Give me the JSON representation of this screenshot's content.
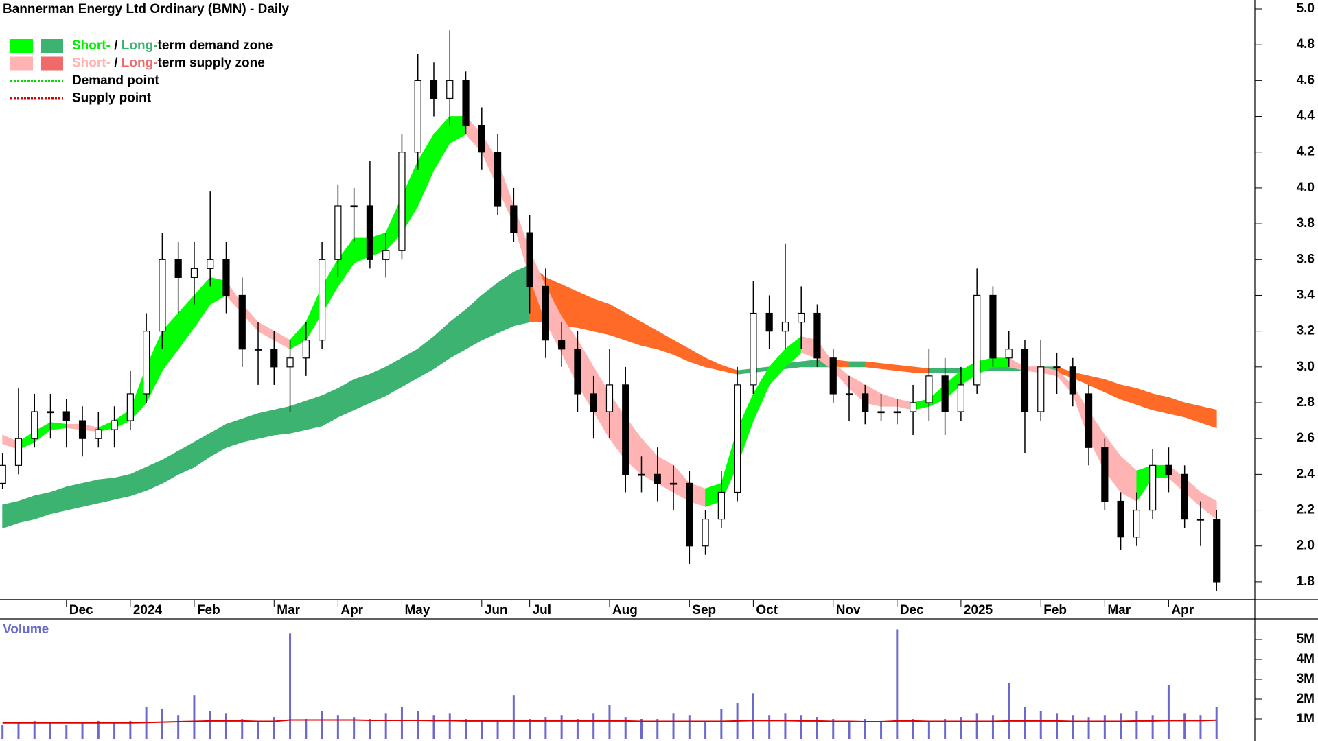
{
  "chart_data": [
    {
      "type": "candlestick",
      "title": "Bannerman Energy Ltd Ordinary (BMN) - Daily",
      "categories": [
        null,
        null,
        null,
        null,
        "Dec",
        null,
        null,
        null,
        "2024",
        null,
        null,
        null,
        "Feb",
        null,
        null,
        null,
        null,
        "Mar",
        null,
        null,
        null,
        "Apr",
        null,
        null,
        null,
        "May",
        null,
        null,
        null,
        null,
        "Jun",
        null,
        null,
        "Jul",
        null,
        null,
        null,
        null,
        "Aug",
        null,
        null,
        null,
        null,
        "Sep",
        null,
        null,
        null,
        "Oct",
        null,
        null,
        null,
        null,
        "Nov",
        null,
        null,
        null,
        "Dec",
        null,
        null,
        null,
        "2025",
        null,
        null,
        null,
        null,
        "Feb",
        null,
        null,
        null,
        "Mar",
        null,
        null,
        null,
        "Apr",
        null,
        null,
        null
      ],
      "open": [
        2.35,
        2.45,
        2.6,
        2.75,
        2.75,
        2.7,
        2.6,
        2.65,
        2.7,
        2.85,
        3.2,
        3.6,
        3.5,
        3.55,
        3.6,
        3.4,
        3.1,
        3.1,
        3.0,
        3.05,
        3.15,
        3.6,
        3.9,
        3.9,
        3.6,
        3.65,
        4.2,
        4.6,
        4.5,
        4.6,
        4.35,
        4.2,
        3.9,
        3.75,
        3.45,
        3.15,
        3.1,
        2.85,
        2.75,
        2.9,
        2.4,
        2.4,
        2.35,
        2.35,
        2.0,
        2.15,
        2.3,
        2.9,
        3.3,
        3.2,
        3.25,
        3.3,
        3.05,
        2.85,
        2.85,
        2.75,
        2.75,
        2.75,
        2.8,
        2.95,
        2.75,
        2.9,
        3.4,
        3.05,
        3.1,
        2.75,
        3.0,
        3.0,
        2.85,
        2.55,
        2.25,
        2.05,
        2.2,
        2.45,
        2.4,
        2.15,
        2.15
      ],
      "high": [
        2.52,
        2.88,
        2.85,
        2.85,
        2.82,
        2.78,
        2.75,
        2.78,
        2.98,
        3.3,
        3.75,
        3.7,
        3.7,
        3.98,
        3.7,
        3.5,
        3.25,
        3.2,
        3.15,
        3.25,
        3.7,
        4.02,
        4.0,
        4.15,
        3.75,
        4.3,
        4.75,
        4.7,
        4.88,
        4.65,
        4.45,
        4.3,
        4.0,
        3.85,
        3.55,
        3.25,
        3.2,
        2.95,
        3.1,
        3.0,
        2.5,
        2.55,
        2.45,
        2.42,
        2.2,
        2.42,
        3.0,
        3.48,
        3.4,
        3.69,
        3.45,
        3.35,
        3.1,
        2.95,
        2.9,
        2.85,
        2.82,
        2.9,
        3.1,
        3.05,
        3.0,
        3.55,
        3.45,
        3.2,
        3.15,
        3.15,
        3.08,
        3.05,
        2.9,
        2.6,
        2.3,
        2.3,
        2.54,
        2.55,
        2.45,
        2.25,
        2.2
      ],
      "low": [
        2.32,
        2.4,
        2.55,
        2.6,
        2.55,
        2.5,
        2.55,
        2.55,
        2.65,
        2.8,
        3.1,
        3.3,
        3.35,
        3.45,
        3.3,
        3.0,
        2.9,
        2.9,
        2.75,
        2.95,
        3.1,
        3.5,
        3.7,
        3.55,
        3.5,
        3.6,
        4.1,
        4.4,
        4.35,
        4.3,
        4.1,
        3.85,
        3.7,
        3.3,
        3.05,
        3.0,
        2.75,
        2.6,
        2.6,
        2.3,
        2.3,
        2.25,
        2.2,
        1.9,
        1.95,
        2.1,
        2.25,
        2.85,
        3.1,
        3.1,
        3.1,
        3.0,
        2.8,
        2.7,
        2.68,
        2.7,
        2.68,
        2.62,
        2.7,
        2.62,
        2.7,
        2.85,
        3.0,
        3.0,
        2.52,
        2.7,
        2.85,
        2.78,
        2.45,
        2.2,
        1.98,
        2.0,
        2.15,
        2.3,
        2.1,
        2.0,
        1.75
      ],
      "close": [
        2.45,
        2.6,
        2.75,
        2.75,
        2.7,
        2.6,
        2.65,
        2.7,
        2.85,
        3.2,
        3.6,
        3.5,
        3.55,
        3.6,
        3.4,
        3.1,
        3.1,
        3.0,
        3.05,
        3.15,
        3.6,
        3.9,
        3.9,
        3.6,
        3.65,
        4.2,
        4.6,
        4.5,
        4.6,
        4.35,
        4.2,
        3.9,
        3.75,
        3.45,
        3.15,
        3.1,
        2.85,
        2.75,
        2.9,
        2.4,
        2.4,
        2.35,
        2.35,
        2.0,
        2.15,
        2.3,
        2.9,
        3.3,
        3.2,
        3.25,
        3.3,
        3.05,
        2.85,
        2.85,
        2.75,
        2.75,
        2.75,
        2.8,
        2.95,
        2.75,
        2.9,
        3.4,
        3.05,
        3.1,
        2.75,
        3.0,
        3.0,
        2.85,
        2.55,
        2.25,
        2.05,
        2.2,
        2.45,
        2.4,
        2.15,
        2.15,
        1.8
      ],
      "rising_color": "#ffffff",
      "falling_color": "#000000",
      "candle_edge": "#000000",
      "ylim": [
        1.7,
        5.0
      ],
      "yticks": [
        {
          "value": 5.0,
          "label": "5.0"
        },
        4.8,
        4.6,
        4.4,
        4.2,
        {
          "value": 4.0,
          "label": "4.0"
        },
        3.8,
        3.6,
        3.4,
        3.2,
        {
          "value": 3.0,
          "label": "3.0"
        },
        2.8,
        2.6,
        2.4,
        2.2,
        {
          "value": 2.0,
          "label": "2.0"
        },
        1.8
      ],
      "bands": [
        {
          "upper": [
            2.23,
            2.25,
            2.28,
            2.3,
            2.33,
            2.35,
            2.37,
            2.38,
            2.4,
            2.44,
            2.48,
            2.53,
            2.58,
            2.63,
            2.68,
            2.71,
            2.74,
            2.76,
            2.78,
            2.81,
            2.84,
            2.88,
            2.93,
            2.96,
            3.0,
            3.05,
            3.1,
            3.17,
            3.25,
            3.32,
            3.4,
            3.47,
            3.53,
            3.57,
            3.5,
            3.46,
            3.42,
            3.38,
            3.35,
            3.3,
            3.25,
            3.2,
            3.15,
            3.1,
            3.05,
            3.01,
            2.98,
            2.99,
            3.0,
            3.02,
            3.03,
            3.04,
            3.04,
            3.03,
            3.03,
            3.02,
            3.01,
            3.0,
            2.99,
            2.99,
            2.99,
            3.0,
            3.0,
            3.0,
            3.0,
            3.0,
            3.0,
            2.97,
            2.95,
            2.93,
            2.9,
            2.88,
            2.85,
            2.83,
            2.8,
            2.78,
            2.76
          ],
          "lower": [
            2.1,
            2.13,
            2.15,
            2.18,
            2.2,
            2.22,
            2.24,
            2.26,
            2.28,
            2.31,
            2.35,
            2.4,
            2.44,
            2.5,
            2.55,
            2.58,
            2.6,
            2.62,
            2.63,
            2.65,
            2.67,
            2.72,
            2.76,
            2.8,
            2.84,
            2.89,
            2.94,
            2.99,
            3.05,
            3.1,
            3.15,
            3.19,
            3.23,
            3.25,
            3.25,
            3.23,
            3.22,
            3.2,
            3.18,
            3.15,
            3.12,
            3.1,
            3.07,
            3.03,
            3.0,
            2.98,
            2.96,
            2.97,
            2.98,
            2.99,
            3.0,
            3.0,
            3.0,
            3.0,
            3.0,
            2.99,
            2.98,
            2.97,
            2.97,
            2.97,
            2.97,
            2.98,
            2.98,
            2.98,
            2.98,
            2.97,
            2.97,
            2.94,
            2.9,
            2.86,
            2.82,
            2.79,
            2.76,
            2.74,
            2.72,
            2.69,
            2.66
          ],
          "rising_color": "#3cb371",
          "falling_color": "#ff6a26"
        },
        {
          "upper": [
            2.62,
            2.58,
            2.64,
            2.69,
            2.68,
            2.68,
            2.66,
            2.7,
            2.76,
            3.0,
            3.2,
            3.3,
            3.4,
            3.5,
            3.48,
            3.35,
            3.25,
            3.2,
            3.15,
            3.25,
            3.45,
            3.6,
            3.72,
            3.72,
            3.75,
            3.95,
            4.15,
            4.3,
            4.4,
            4.4,
            4.3,
            4.15,
            3.9,
            3.65,
            3.45,
            3.28,
            3.15,
            3.0,
            2.85,
            2.72,
            2.6,
            2.5,
            2.45,
            2.35,
            2.32,
            2.35,
            2.65,
            2.85,
            3.0,
            3.1,
            3.17,
            3.15,
            3.02,
            2.95,
            2.9,
            2.85,
            2.82,
            2.8,
            2.82,
            2.9,
            2.98,
            3.03,
            3.05,
            3.05,
            3.0,
            3.0,
            2.98,
            2.9,
            2.75,
            2.62,
            2.5,
            2.42,
            2.45,
            2.45,
            2.38,
            2.3,
            2.25
          ],
          "lower": [
            2.57,
            2.54,
            2.58,
            2.65,
            2.66,
            2.65,
            2.64,
            2.66,
            2.7,
            2.8,
            2.98,
            3.1,
            3.22,
            3.35,
            3.4,
            3.3,
            3.2,
            3.15,
            3.1,
            3.15,
            3.3,
            3.45,
            3.58,
            3.62,
            3.65,
            3.75,
            3.9,
            4.1,
            4.25,
            4.3,
            4.2,
            4.0,
            3.8,
            3.5,
            3.25,
            3.08,
            2.9,
            2.75,
            2.6,
            2.48,
            2.4,
            2.35,
            2.3,
            2.25,
            2.22,
            2.25,
            2.45,
            2.7,
            2.9,
            3.0,
            3.08,
            3.05,
            2.98,
            2.88,
            2.8,
            2.78,
            2.78,
            2.76,
            2.78,
            2.82,
            2.9,
            2.96,
            3.0,
            3.0,
            2.98,
            2.97,
            2.95,
            2.85,
            2.6,
            2.42,
            2.3,
            2.25,
            2.38,
            2.38,
            2.3,
            2.22,
            2.15
          ],
          "rising_color": "#00ff00",
          "falling_color": "#ffb3b3"
        }
      ],
      "legend": [
        {
          "swatches": [
            "#00ff00",
            "#3cb371"
          ],
          "parts": [
            {
              "text": "Short-",
              "color": "#00ee00"
            },
            {
              "text": " / ",
              "color": "#000000"
            },
            {
              "text": "Long-",
              "color": "#3cb371"
            },
            {
              "text": "term demand zone",
              "color": "#000000"
            }
          ]
        },
        {
          "swatches": [
            "#ffb3b3",
            "#f06a6a"
          ],
          "parts": [
            {
              "text": "Short-",
              "color": "#ffb3b3"
            },
            {
              "text": " / ",
              "color": "#000000"
            },
            {
              "text": "Long-",
              "color": "#f06a6a"
            },
            {
              "text": "term supply zone",
              "color": "#000000"
            }
          ]
        },
        {
          "dotted": "#00dd00",
          "parts": [
            {
              "text": "Demand point",
              "color": "#000000"
            }
          ]
        },
        {
          "dotted": "#dd0000",
          "parts": [
            {
              "text": "Supply point",
              "color": "#000000"
            }
          ]
        }
      ]
    },
    {
      "type": "bar",
      "title": "Volume",
      "values": [
        0.7,
        0.8,
        0.9,
        0.8,
        0.7,
        0.8,
        0.9,
        0.8,
        0.9,
        1.6,
        1.5,
        1.2,
        2.2,
        1.4,
        1.3,
        1.0,
        0.9,
        1.1,
        5.3,
        1.0,
        1.4,
        1.2,
        1.1,
        1.0,
        1.3,
        1.6,
        1.4,
        1.2,
        1.3,
        1.0,
        0.9,
        0.9,
        2.2,
        1.0,
        1.1,
        1.2,
        1.0,
        1.3,
        1.7,
        1.1,
        1.0,
        1.0,
        1.3,
        1.2,
        0.9,
        1.5,
        1.8,
        2.3,
        1.2,
        1.3,
        1.2,
        1.1,
        1.0,
        0.9,
        1.0,
        0.9,
        5.5,
        1.0,
        0.9,
        1.0,
        1.1,
        1.3,
        1.2,
        2.8,
        1.6,
        1.4,
        1.3,
        1.2,
        1.1,
        1.2,
        1.3,
        1.4,
        1.2,
        2.7,
        1.3,
        1.2,
        1.6
      ],
      "moving_average": [
        0.8,
        0.8,
        0.8,
        0.8,
        0.8,
        0.8,
        0.8,
        0.8,
        0.8,
        0.82,
        0.84,
        0.86,
        0.88,
        0.9,
        0.9,
        0.9,
        0.88,
        0.88,
        0.95,
        0.95,
        0.95,
        0.95,
        0.95,
        0.93,
        0.93,
        0.93,
        0.93,
        0.92,
        0.92,
        0.9,
        0.9,
        0.9,
        0.9,
        0.9,
        0.9,
        0.9,
        0.9,
        0.9,
        0.9,
        0.9,
        0.88,
        0.88,
        0.88,
        0.88,
        0.88,
        0.88,
        0.9,
        0.92,
        0.92,
        0.92,
        0.9,
        0.9,
        0.88,
        0.88,
        0.86,
        0.86,
        0.9,
        0.9,
        0.88,
        0.88,
        0.88,
        0.88,
        0.88,
        0.9,
        0.9,
        0.9,
        0.9,
        0.88,
        0.88,
        0.88,
        0.88,
        0.9,
        0.9,
        0.92,
        0.92,
        0.92,
        0.94
      ],
      "color": "#6a6acd",
      "line_color": "#e00000",
      "title_color": "#6a6acd",
      "ylim": [
        0,
        6
      ],
      "yticks": [
        {
          "value": 5,
          "label": "5M"
        },
        {
          "value": 4,
          "label": "4M"
        },
        {
          "value": 3,
          "label": "3M"
        },
        {
          "value": 2,
          "label": "2M"
        },
        {
          "value": 1,
          "label": "1M"
        }
      ]
    }
  ]
}
